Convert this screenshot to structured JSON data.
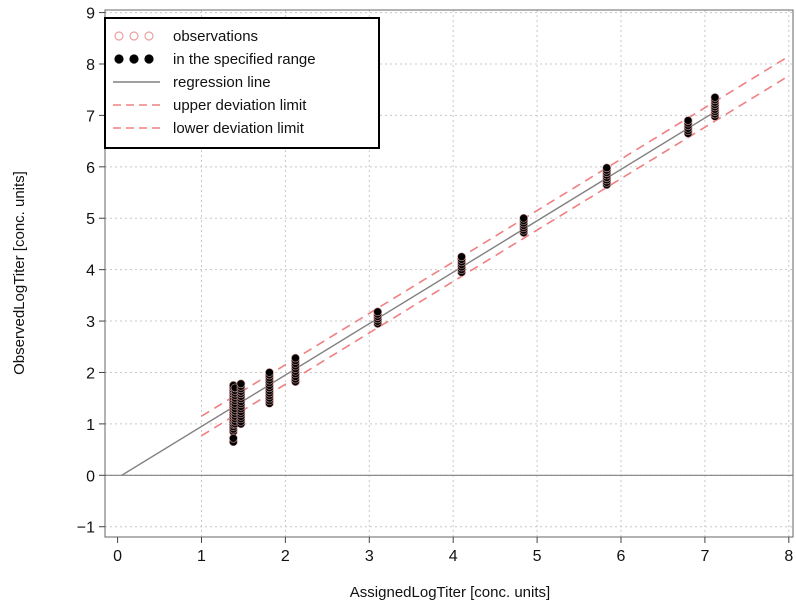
{
  "chart_data": {
    "type": "scatter",
    "title": "",
    "xlabel": "AssignedLogTiter  [conc. units]",
    "ylabel": "ObservedLogTiter  [conc. units]",
    "xlim": [
      -0.15,
      8.05
    ],
    "ylim": [
      -1.2,
      9.05
    ],
    "xticks": [
      "0",
      "1",
      "2",
      "3",
      "4",
      "5",
      "6",
      "7",
      "8"
    ],
    "yticks": [
      "-1",
      "0",
      "1",
      "2",
      "3",
      "4",
      "5",
      "6",
      "7",
      "8",
      "9"
    ],
    "grid": true,
    "legend_position": "top-left",
    "legend": [
      {
        "label": "observations",
        "kind": "open-circles",
        "color": "#e8a0a0"
      },
      {
        "label": "in the specified range",
        "kind": "filled-circles",
        "color": "#000000"
      },
      {
        "label": "regression line",
        "kind": "solid-line",
        "color": "#808080"
      },
      {
        "label": "upper deviation limit",
        "kind": "dashed-line",
        "color": "#f08080"
      },
      {
        "label": "lower deviation limit",
        "kind": "dashed-line",
        "color": "#f08080"
      }
    ],
    "colors": {
      "points": "#000000",
      "point_outline": "#cc9999",
      "regression": "#808080",
      "limits": "#f08080",
      "grid": "#c8c8c8"
    },
    "regression_line": {
      "slope": 1.0,
      "intercept": -0.05,
      "x_range": [
        0.05,
        7.1
      ]
    },
    "upper_limit": {
      "slope": 1.0,
      "intercept": 0.15,
      "x_range": [
        1.0,
        8.0
      ]
    },
    "lower_limit": {
      "slope": 1.0,
      "intercept": -0.23,
      "x_range": [
        1.0,
        8.0
      ]
    },
    "zero_line_y": 0,
    "clusters": [
      {
        "x": 1.38,
        "y_min": 0.85,
        "y_max": 1.75
      },
      {
        "x": 1.4,
        "y_min": 1.0,
        "y_max": 1.7
      },
      {
        "x": 1.47,
        "y_min": 1.0,
        "y_max": 1.78
      },
      {
        "x": 1.81,
        "y_min": 1.4,
        "y_max": 2.0
      },
      {
        "x": 2.12,
        "y_min": 1.82,
        "y_max": 2.28
      },
      {
        "x": 3.1,
        "y_min": 2.95,
        "y_max": 3.18
      },
      {
        "x": 4.1,
        "y_min": 3.95,
        "y_max": 4.25
      },
      {
        "x": 4.84,
        "y_min": 4.72,
        "y_max": 5.0
      },
      {
        "x": 5.83,
        "y_min": 5.65,
        "y_max": 5.98
      },
      {
        "x": 6.8,
        "y_min": 6.65,
        "y_max": 6.9
      },
      {
        "x": 7.12,
        "y_min": 6.98,
        "y_max": 7.35
      }
    ],
    "extra_points": [
      {
        "x": 1.38,
        "y": 0.65
      },
      {
        "x": 1.38,
        "y": 0.72
      }
    ]
  }
}
